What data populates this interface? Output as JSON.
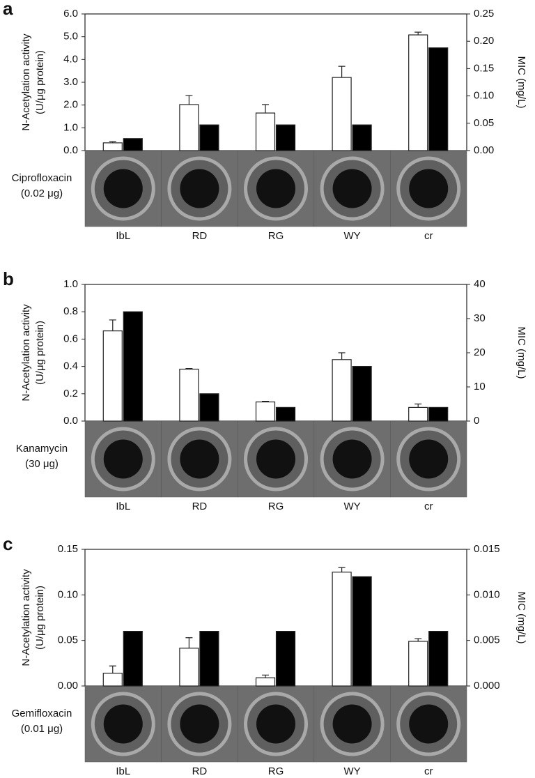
{
  "chart_data": [
    {
      "type": "bar",
      "panel": "a",
      "categories": [
        "IbL",
        "RD",
        "RG",
        "WY",
        "cr"
      ],
      "series": [
        {
          "color": "#ffffff",
          "values": [
            0.34,
            2.02,
            1.65,
            3.21,
            5.08
          ],
          "errors": [
            0.05,
            0.4,
            0.37,
            0.49,
            0.12
          ]
        },
        {
          "color": "#000000",
          "axis": "y2",
          "values": [
            0.022,
            0.047,
            0.047,
            0.047,
            0.188
          ]
        }
      ],
      "ylim": [
        0,
        6
      ],
      "yticks": [
        {
          "value": 0,
          "label": "0.0"
        },
        {
          "value": 1,
          "label": "1.0"
        },
        {
          "value": 2,
          "label": "2.0"
        },
        {
          "value": 3,
          "label": "3.0"
        },
        {
          "value": 4,
          "label": "4.0"
        },
        {
          "value": 5,
          "label": "5.0"
        },
        {
          "value": 6,
          "label": "6.0"
        }
      ],
      "y2lim": [
        0,
        0.25
      ],
      "y2ticks": [
        {
          "value": 0,
          "label": "0.00"
        },
        0.05,
        {
          "value": 0.1,
          "label": "0.10"
        },
        0.15,
        {
          "value": 0.2,
          "label": "0.20"
        },
        0.25
      ],
      "y_label": [
        "N-Acetylation activity",
        "(U/μg protein)"
      ],
      "y2_label": "MIC (mg/L)",
      "disc_label": [
        "Ciprofloxacin",
        "(0.02 μg)"
      ]
    },
    {
      "type": "bar",
      "panel": "b",
      "categories": [
        "IbL",
        "RD",
        "RG",
        "WY",
        "cr"
      ],
      "series": [
        {
          "color": "#ffffff",
          "values": [
            0.66,
            0.38,
            0.14,
            0.45,
            0.1
          ],
          "errors": [
            0.08,
            0.005,
            0.005,
            0.05,
            0.025
          ]
        },
        {
          "color": "#000000",
          "axis": "y2",
          "values": [
            32,
            8,
            4,
            16,
            4
          ]
        }
      ],
      "ylim": [
        0,
        1
      ],
      "yticks": [
        {
          "value": 0,
          "label": "0.0"
        },
        0.2,
        0.4,
        0.6,
        0.8,
        {
          "value": 1,
          "label": "1.0"
        }
      ],
      "y2lim": [
        0,
        40
      ],
      "y2ticks": [
        0,
        10,
        20,
        30,
        40
      ],
      "y_label": [
        "N-Acetylation activity",
        "(U/μg protein)"
      ],
      "y2_label": "MIC (mg/L)",
      "disc_label": [
        "Kanamycin",
        "(30 μg)"
      ]
    },
    {
      "type": "bar",
      "panel": "c",
      "categories": [
        "IbL",
        "RD",
        "RG",
        "WY",
        "cr"
      ],
      "series": [
        {
          "color": "#ffffff",
          "values": [
            0.014,
            0.0415,
            0.009,
            0.125,
            0.049
          ],
          "errors": [
            0.008,
            0.0115,
            0.003,
            0.005,
            0.003
          ]
        },
        {
          "color": "#000000",
          "axis": "y2",
          "values": [
            0.006,
            0.006,
            0.006,
            0.012,
            0.006
          ]
        }
      ],
      "ylim": [
        0,
        0.15
      ],
      "yticks": [
        {
          "value": 0,
          "label": "0.00"
        },
        0.05,
        {
          "value": 0.1,
          "label": "0.10"
        },
        0.15
      ],
      "y2lim": [
        0,
        0.015
      ],
      "y2ticks": [
        {
          "value": 0,
          "label": "0.000"
        },
        0.005,
        {
          "value": 0.01,
          "label": "0.010"
        },
        0.015
      ],
      "y_label": [
        "N-Acetylation activity",
        "(U/μg protein)"
      ],
      "y2_label": "MIC (mg/L)",
      "disc_label": [
        "Gemifloxacin",
        "(0.01 μg)"
      ]
    }
  ]
}
